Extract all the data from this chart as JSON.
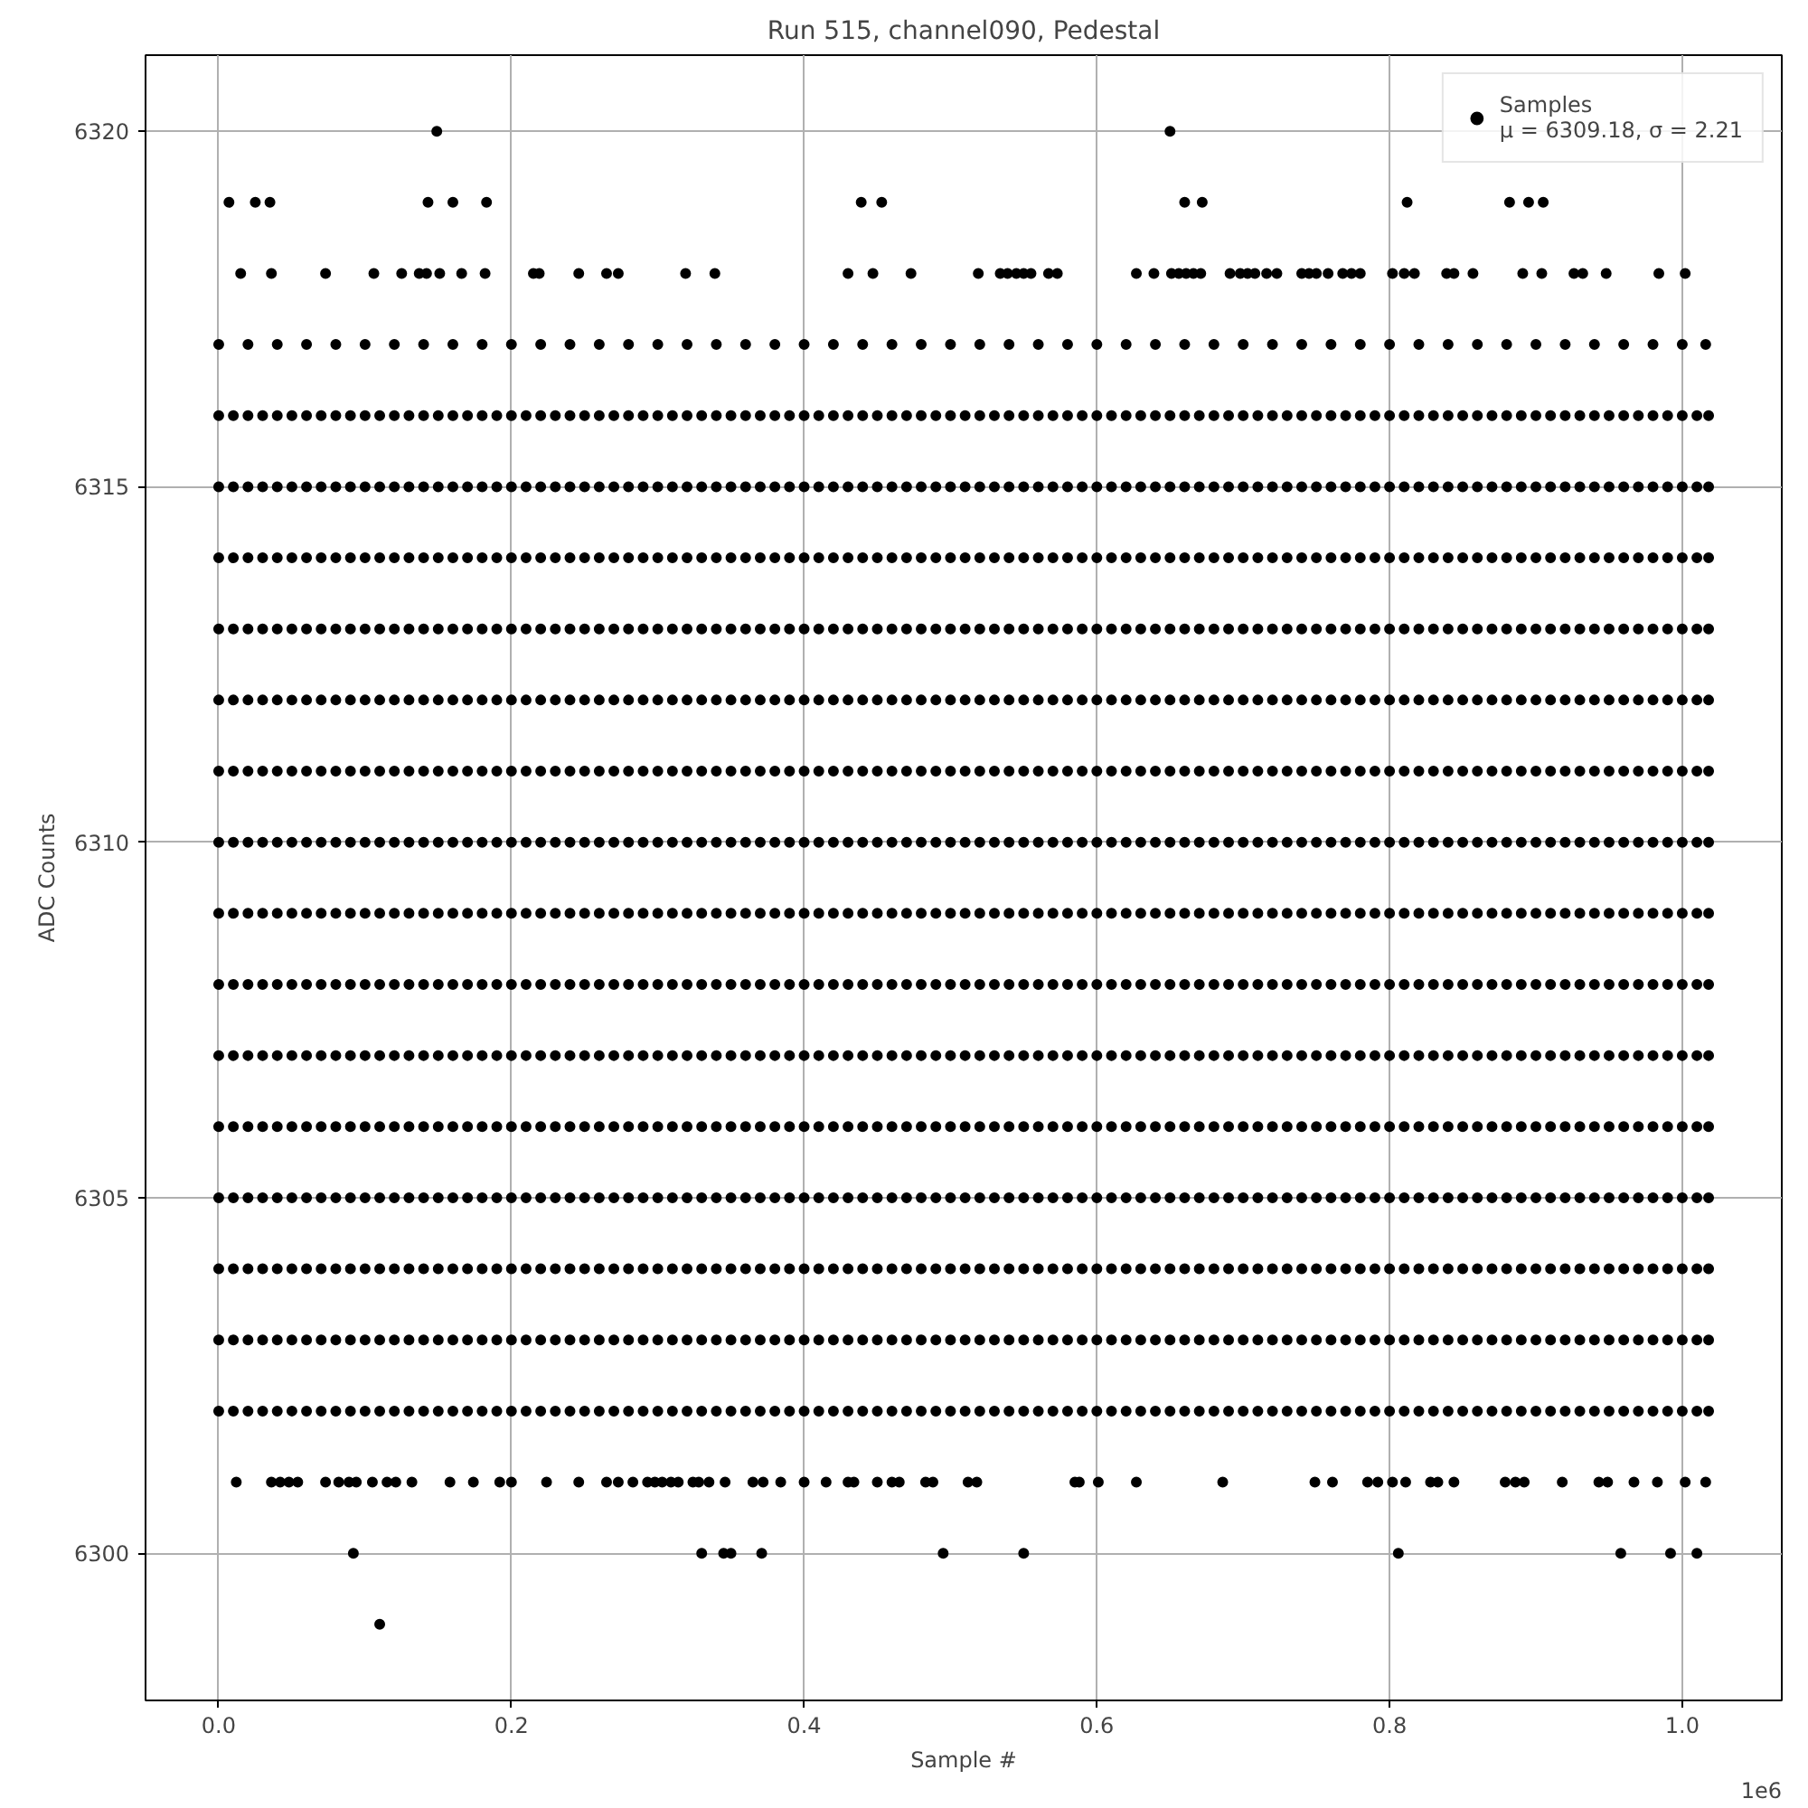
{
  "chart_data": {
    "type": "scatter",
    "title": "Run 515, channel090, Pedestal",
    "xlabel": "Sample #",
    "ylabel": "ADC Counts",
    "annotations": [
      "1e6"
    ],
    "xlim": [
      -0.05,
      1.068
    ],
    "ylim": [
      6297.93,
      6321.07
    ],
    "xticks": [
      {
        "value": 0,
        "label": "0.0"
      },
      {
        "value": 0.2,
        "label": "0.2"
      },
      {
        "value": 0.4,
        "label": "0.4"
      },
      {
        "value": 0.6,
        "label": "0.6"
      },
      {
        "value": 0.8,
        "label": "0.8"
      },
      {
        "value": 1.0,
        "label": "1.0"
      }
    ],
    "yticks": [
      6300,
      6305,
      6310,
      6315,
      6320
    ],
    "grid": true,
    "legend": "top right",
    "marker": "circle",
    "x": [
      0,
      0.01,
      0.02,
      0.03,
      0.04,
      0.05,
      0.06,
      0.07,
      0.08,
      0.09,
      0.1,
      0.11,
      0.12,
      0.13,
      0.14,
      0.15,
      0.16,
      0.17,
      0.18,
      0.19,
      0.2,
      0.21,
      0.22,
      0.23,
      0.24,
      0.25,
      0.26,
      0.27,
      0.28,
      0.29,
      0.3,
      0.31,
      0.32,
      0.33,
      0.34,
      0.35,
      0.36,
      0.37,
      0.38,
      0.39,
      0.4,
      0.41,
      0.42,
      0.43,
      0.44,
      0.45,
      0.46,
      0.47,
      0.48,
      0.49,
      0.5,
      0.51,
      0.52,
      0.53,
      0.54,
      0.55,
      0.56,
      0.57,
      0.58,
      0.59,
      0.6,
      0.61,
      0.62,
      0.63,
      0.64,
      0.65,
      0.66,
      0.67,
      0.68,
      0.69,
      0.7,
      0.71,
      0.72,
      0.73,
      0.74,
      0.75,
      0.76,
      0.77,
      0.78,
      0.79,
      0.8,
      0.81,
      0.82,
      0.83,
      0.84,
      0.85,
      0.86,
      0.87,
      0.88,
      0.89,
      0.9,
      0.91,
      0.92,
      0.93,
      0.94,
      0.95,
      0.96,
      0.97,
      0.98,
      0.99,
      1.0,
      1.01,
      1.018
    ],
    "series": [
      {
        "name": "Samples\nμ = 6309.18, σ = 2.21",
        "color": "#000000",
        "values": [
          6310,
          6310,
          6310,
          6310,
          6310,
          6310,
          6310,
          6310,
          6310,
          6310,
          6310,
          6310,
          6310,
          6310,
          6310,
          6310,
          6310,
          6310,
          6310,
          6310,
          6310,
          6310,
          6310,
          6310,
          6310,
          6310,
          6310,
          6310,
          6310,
          6310,
          6310,
          6310,
          6310,
          6310,
          6310,
          6310,
          6310,
          6310,
          6310,
          6310,
          6310,
          6310,
          6310,
          6310,
          6310,
          6310,
          6310,
          6310,
          6310,
          6310,
          6310,
          6310,
          6310,
          6310,
          6310,
          6310,
          6310,
          6310,
          6310,
          6310,
          6310,
          6310,
          6310,
          6310,
          6310,
          6310,
          6310,
          6310,
          6310,
          6310,
          6310,
          6310,
          6310,
          6310,
          6310,
          6310,
          6310,
          6310,
          6310,
          6310,
          6310,
          6310,
          6310,
          6310,
          6310,
          6310,
          6310,
          6310,
          6310,
          6310,
          6310,
          6310,
          6310,
          6310,
          6310,
          6310,
          6310,
          6310,
          6310,
          6310,
          6310,
          6310,
          6310
        ]
      },
      {
        "color": "#000000",
        "values": [
          6302,
          6302,
          6302,
          6302,
          6302,
          6302,
          6302,
          6302,
          6302,
          6302,
          6302,
          6302,
          6302,
          6302,
          6302,
          6302,
          6302,
          6302,
          6302,
          6302,
          6302,
          6302,
          6302,
          6302,
          6302,
          6302,
          6302,
          6302,
          6302,
          6302,
          6302,
          6302,
          6302,
          6302,
          6302,
          6302,
          6302,
          6302,
          6302,
          6302,
          6302,
          6302,
          6302,
          6302,
          6302,
          6302,
          6302,
          6302,
          6302,
          6302,
          6302,
          6302,
          6302,
          6302,
          6302,
          6302,
          6302,
          6302,
          6302,
          6302,
          6302,
          6302,
          6302,
          6302,
          6302,
          6302,
          6302,
          6302,
          6302,
          6302,
          6302,
          6302,
          6302,
          6302,
          6302,
          6302,
          6302,
          6302,
          6302,
          6302,
          6302,
          6302,
          6302,
          6302,
          6302,
          6302,
          6302,
          6302,
          6302,
          6302,
          6302,
          6302,
          6302,
          6302,
          6302,
          6302,
          6302,
          6302,
          6302,
          6302,
          6302,
          6302,
          6302
        ]
      },
      {
        "color": "#000000",
        "values": [
          6303,
          6303,
          6303,
          6303,
          6303,
          6303,
          6303,
          6303,
          6303,
          6303,
          6303,
          6303,
          6303,
          6303,
          6303,
          6303,
          6303,
          6303,
          6303,
          6303,
          6303,
          6303,
          6303,
          6303,
          6303,
          6303,
          6303,
          6303,
          6303,
          6303,
          6303,
          6303,
          6303,
          6303,
          6303,
          6303,
          6303,
          6303,
          6303,
          6303,
          6303,
          6303,
          6303,
          6303,
          6303,
          6303,
          6303,
          6303,
          6303,
          6303,
          6303,
          6303,
          6303,
          6303,
          6303,
          6303,
          6303,
          6303,
          6303,
          6303,
          6303,
          6303,
          6303,
          6303,
          6303,
          6303,
          6303,
          6303,
          6303,
          6303,
          6303,
          6303,
          6303,
          6303,
          6303,
          6303,
          6303,
          6303,
          6303,
          6303,
          6303,
          6303,
          6303,
          6303,
          6303,
          6303,
          6303,
          6303,
          6303,
          6303,
          6303,
          6303,
          6303,
          6303,
          6303,
          6303,
          6303,
          6303,
          6303,
          6303,
          6303,
          6303,
          6303
        ]
      },
      {
        "color": "#000000",
        "values": [
          6304,
          6304,
          6304,
          6304,
          6304,
          6304,
          6304,
          6304,
          6304,
          6304,
          6304,
          6304,
          6304,
          6304,
          6304,
          6304,
          6304,
          6304,
          6304,
          6304,
          6304,
          6304,
          6304,
          6304,
          6304,
          6304,
          6304,
          6304,
          6304,
          6304,
          6304,
          6304,
          6304,
          6304,
          6304,
          6304,
          6304,
          6304,
          6304,
          6304,
          6304,
          6304,
          6304,
          6304,
          6304,
          6304,
          6304,
          6304,
          6304,
          6304,
          6304,
          6304,
          6304,
          6304,
          6304,
          6304,
          6304,
          6304,
          6304,
          6304,
          6304,
          6304,
          6304,
          6304,
          6304,
          6304,
          6304,
          6304,
          6304,
          6304,
          6304,
          6304,
          6304,
          6304,
          6304,
          6304,
          6304,
          6304,
          6304,
          6304,
          6304,
          6304,
          6304,
          6304,
          6304,
          6304,
          6304,
          6304,
          6304,
          6304,
          6304,
          6304,
          6304,
          6304,
          6304,
          6304,
          6304,
          6304,
          6304,
          6304,
          6304,
          6304,
          6304
        ]
      },
      {
        "color": "#000000",
        "values": [
          6305,
          6305,
          6305,
          6305,
          6305,
          6305,
          6305,
          6305,
          6305,
          6305,
          6305,
          6305,
          6305,
          6305,
          6305,
          6305,
          6305,
          6305,
          6305,
          6305,
          6305,
          6305,
          6305,
          6305,
          6305,
          6305,
          6305,
          6305,
          6305,
          6305,
          6305,
          6305,
          6305,
          6305,
          6305,
          6305,
          6305,
          6305,
          6305,
          6305,
          6305,
          6305,
          6305,
          6305,
          6305,
          6305,
          6305,
          6305,
          6305,
          6305,
          6305,
          6305,
          6305,
          6305,
          6305,
          6305,
          6305,
          6305,
          6305,
          6305,
          6305,
          6305,
          6305,
          6305,
          6305,
          6305,
          6305,
          6305,
          6305,
          6305,
          6305,
          6305,
          6305,
          6305,
          6305,
          6305,
          6305,
          6305,
          6305,
          6305,
          6305,
          6305,
          6305,
          6305,
          6305,
          6305,
          6305,
          6305,
          6305,
          6305,
          6305,
          6305,
          6305,
          6305,
          6305,
          6305,
          6305,
          6305,
          6305,
          6305,
          6305,
          6305,
          6305
        ]
      },
      {
        "color": "#000000",
        "values": [
          6306,
          6306,
          6306,
          6306,
          6306,
          6306,
          6306,
          6306,
          6306,
          6306,
          6306,
          6306,
          6306,
          6306,
          6306,
          6306,
          6306,
          6306,
          6306,
          6306,
          6306,
          6306,
          6306,
          6306,
          6306,
          6306,
          6306,
          6306,
          6306,
          6306,
          6306,
          6306,
          6306,
          6306,
          6306,
          6306,
          6306,
          6306,
          6306,
          6306,
          6306,
          6306,
          6306,
          6306,
          6306,
          6306,
          6306,
          6306,
          6306,
          6306,
          6306,
          6306,
          6306,
          6306,
          6306,
          6306,
          6306,
          6306,
          6306,
          6306,
          6306,
          6306,
          6306,
          6306,
          6306,
          6306,
          6306,
          6306,
          6306,
          6306,
          6306,
          6306,
          6306,
          6306,
          6306,
          6306,
          6306,
          6306,
          6306,
          6306,
          6306,
          6306,
          6306,
          6306,
          6306,
          6306,
          6306,
          6306,
          6306,
          6306,
          6306,
          6306,
          6306,
          6306,
          6306,
          6306,
          6306,
          6306,
          6306,
          6306,
          6306,
          6306,
          6306
        ]
      },
      {
        "color": "#000000",
        "values": [
          6307,
          6307,
          6307,
          6307,
          6307,
          6307,
          6307,
          6307,
          6307,
          6307,
          6307,
          6307,
          6307,
          6307,
          6307,
          6307,
          6307,
          6307,
          6307,
          6307,
          6307,
          6307,
          6307,
          6307,
          6307,
          6307,
          6307,
          6307,
          6307,
          6307,
          6307,
          6307,
          6307,
          6307,
          6307,
          6307,
          6307,
          6307,
          6307,
          6307,
          6307,
          6307,
          6307,
          6307,
          6307,
          6307,
          6307,
          6307,
          6307,
          6307,
          6307,
          6307,
          6307,
          6307,
          6307,
          6307,
          6307,
          6307,
          6307,
          6307,
          6307,
          6307,
          6307,
          6307,
          6307,
          6307,
          6307,
          6307,
          6307,
          6307,
          6307,
          6307,
          6307,
          6307,
          6307,
          6307,
          6307,
          6307,
          6307,
          6307,
          6307,
          6307,
          6307,
          6307,
          6307,
          6307,
          6307,
          6307,
          6307,
          6307,
          6307,
          6307,
          6307,
          6307,
          6307,
          6307,
          6307,
          6307,
          6307,
          6307,
          6307,
          6307,
          6307
        ]
      },
      {
        "color": "#000000",
        "values": [
          6308,
          6308,
          6308,
          6308,
          6308,
          6308,
          6308,
          6308,
          6308,
          6308,
          6308,
          6308,
          6308,
          6308,
          6308,
          6308,
          6308,
          6308,
          6308,
          6308,
          6308,
          6308,
          6308,
          6308,
          6308,
          6308,
          6308,
          6308,
          6308,
          6308,
          6308,
          6308,
          6308,
          6308,
          6308,
          6308,
          6308,
          6308,
          6308,
          6308,
          6308,
          6308,
          6308,
          6308,
          6308,
          6308,
          6308,
          6308,
          6308,
          6308,
          6308,
          6308,
          6308,
          6308,
          6308,
          6308,
          6308,
          6308,
          6308,
          6308,
          6308,
          6308,
          6308,
          6308,
          6308,
          6308,
          6308,
          6308,
          6308,
          6308,
          6308,
          6308,
          6308,
          6308,
          6308,
          6308,
          6308,
          6308,
          6308,
          6308,
          6308,
          6308,
          6308,
          6308,
          6308,
          6308,
          6308,
          6308,
          6308,
          6308,
          6308,
          6308,
          6308,
          6308,
          6308,
          6308,
          6308,
          6308,
          6308,
          6308,
          6308,
          6308,
          6308
        ]
      },
      {
        "color": "#000000",
        "values": [
          6309,
          6309,
          6309,
          6309,
          6309,
          6309,
          6309,
          6309,
          6309,
          6309,
          6309,
          6309,
          6309,
          6309,
          6309,
          6309,
          6309,
          6309,
          6309,
          6309,
          6309,
          6309,
          6309,
          6309,
          6309,
          6309,
          6309,
          6309,
          6309,
          6309,
          6309,
          6309,
          6309,
          6309,
          6309,
          6309,
          6309,
          6309,
          6309,
          6309,
          6309,
          6309,
          6309,
          6309,
          6309,
          6309,
          6309,
          6309,
          6309,
          6309,
          6309,
          6309,
          6309,
          6309,
          6309,
          6309,
          6309,
          6309,
          6309,
          6309,
          6309,
          6309,
          6309,
          6309,
          6309,
          6309,
          6309,
          6309,
          6309,
          6309,
          6309,
          6309,
          6309,
          6309,
          6309,
          6309,
          6309,
          6309,
          6309,
          6309,
          6309,
          6309,
          6309,
          6309,
          6309,
          6309,
          6309,
          6309,
          6309,
          6309,
          6309,
          6309,
          6309,
          6309,
          6309,
          6309,
          6309,
          6309,
          6309,
          6309,
          6309,
          6309,
          6309
        ]
      },
      {
        "color": "#000000",
        "values": [
          6311,
          6311,
          6311,
          6311,
          6311,
          6311,
          6311,
          6311,
          6311,
          6311,
          6311,
          6311,
          6311,
          6311,
          6311,
          6311,
          6311,
          6311,
          6311,
          6311,
          6311,
          6311,
          6311,
          6311,
          6311,
          6311,
          6311,
          6311,
          6311,
          6311,
          6311,
          6311,
          6311,
          6311,
          6311,
          6311,
          6311,
          6311,
          6311,
          6311,
          6311,
          6311,
          6311,
          6311,
          6311,
          6311,
          6311,
          6311,
          6311,
          6311,
          6311,
          6311,
          6311,
          6311,
          6311,
          6311,
          6311,
          6311,
          6311,
          6311,
          6311,
          6311,
          6311,
          6311,
          6311,
          6311,
          6311,
          6311,
          6311,
          6311,
          6311,
          6311,
          6311,
          6311,
          6311,
          6311,
          6311,
          6311,
          6311,
          6311,
          6311,
          6311,
          6311,
          6311,
          6311,
          6311,
          6311,
          6311,
          6311,
          6311,
          6311,
          6311,
          6311,
          6311,
          6311,
          6311,
          6311,
          6311,
          6311,
          6311,
          6311,
          6311,
          6311
        ]
      },
      {
        "color": "#000000",
        "values": [
          6312,
          6312,
          6312,
          6312,
          6312,
          6312,
          6312,
          6312,
          6312,
          6312,
          6312,
          6312,
          6312,
          6312,
          6312,
          6312,
          6312,
          6312,
          6312,
          6312,
          6312,
          6312,
          6312,
          6312,
          6312,
          6312,
          6312,
          6312,
          6312,
          6312,
          6312,
          6312,
          6312,
          6312,
          6312,
          6312,
          6312,
          6312,
          6312,
          6312,
          6312,
          6312,
          6312,
          6312,
          6312,
          6312,
          6312,
          6312,
          6312,
          6312,
          6312,
          6312,
          6312,
          6312,
          6312,
          6312,
          6312,
          6312,
          6312,
          6312,
          6312,
          6312,
          6312,
          6312,
          6312,
          6312,
          6312,
          6312,
          6312,
          6312,
          6312,
          6312,
          6312,
          6312,
          6312,
          6312,
          6312,
          6312,
          6312,
          6312,
          6312,
          6312,
          6312,
          6312,
          6312,
          6312,
          6312,
          6312,
          6312,
          6312,
          6312,
          6312,
          6312,
          6312,
          6312,
          6312,
          6312,
          6312,
          6312,
          6312,
          6312,
          6312,
          6312
        ]
      },
      {
        "color": "#000000",
        "values": [
          6313,
          6313,
          6313,
          6313,
          6313,
          6313,
          6313,
          6313,
          6313,
          6313,
          6313,
          6313,
          6313,
          6313,
          6313,
          6313,
          6313,
          6313,
          6313,
          6313,
          6313,
          6313,
          6313,
          6313,
          6313,
          6313,
          6313,
          6313,
          6313,
          6313,
          6313,
          6313,
          6313,
          6313,
          6313,
          6313,
          6313,
          6313,
          6313,
          6313,
          6313,
          6313,
          6313,
          6313,
          6313,
          6313,
          6313,
          6313,
          6313,
          6313,
          6313,
          6313,
          6313,
          6313,
          6313,
          6313,
          6313,
          6313,
          6313,
          6313,
          6313,
          6313,
          6313,
          6313,
          6313,
          6313,
          6313,
          6313,
          6313,
          6313,
          6313,
          6313,
          6313,
          6313,
          6313,
          6313,
          6313,
          6313,
          6313,
          6313,
          6313,
          6313,
          6313,
          6313,
          6313,
          6313,
          6313,
          6313,
          6313,
          6313,
          6313,
          6313,
          6313,
          6313,
          6313,
          6313,
          6313,
          6313,
          6313,
          6313,
          6313,
          6313,
          6313
        ]
      },
      {
        "color": "#000000",
        "values": [
          6314,
          6314,
          6314,
          6314,
          6314,
          6314,
          6314,
          6314,
          6314,
          6314,
          6314,
          6314,
          6314,
          6314,
          6314,
          6314,
          6314,
          6314,
          6314,
          6314,
          6314,
          6314,
          6314,
          6314,
          6314,
          6314,
          6314,
          6314,
          6314,
          6314,
          6314,
          6314,
          6314,
          6314,
          6314,
          6314,
          6314,
          6314,
          6314,
          6314,
          6314,
          6314,
          6314,
          6314,
          6314,
          6314,
          6314,
          6314,
          6314,
          6314,
          6314,
          6314,
          6314,
          6314,
          6314,
          6314,
          6314,
          6314,
          6314,
          6314,
          6314,
          6314,
          6314,
          6314,
          6314,
          6314,
          6314,
          6314,
          6314,
          6314,
          6314,
          6314,
          6314,
          6314,
          6314,
          6314,
          6314,
          6314,
          6314,
          6314,
          6314,
          6314,
          6314,
          6314,
          6314,
          6314,
          6314,
          6314,
          6314,
          6314,
          6314,
          6314,
          6314,
          6314,
          6314,
          6314,
          6314,
          6314,
          6314,
          6314,
          6314,
          6314,
          6314
        ]
      },
      {
        "color": "#000000",
        "values": [
          6315,
          6315,
          6315,
          6315,
          6315,
          6315,
          6315,
          6315,
          6315,
          6315,
          6315,
          6315,
          6315,
          6315,
          6315,
          6315,
          6315,
          6315,
          6315,
          6315,
          6315,
          6315,
          6315,
          6315,
          6315,
          6315,
          6315,
          6315,
          6315,
          6315,
          6315,
          6315,
          6315,
          6315,
          6315,
          6315,
          6315,
          6315,
          6315,
          6315,
          6315,
          6315,
          6315,
          6315,
          6315,
          6315,
          6315,
          6315,
          6315,
          6315,
          6315,
          6315,
          6315,
          6315,
          6315,
          6315,
          6315,
          6315,
          6315,
          6315,
          6315,
          6315,
          6315,
          6315,
          6315,
          6315,
          6315,
          6315,
          6315,
          6315,
          6315,
          6315,
          6315,
          6315,
          6315,
          6315,
          6315,
          6315,
          6315,
          6315,
          6315,
          6315,
          6315,
          6315,
          6315,
          6315,
          6315,
          6315,
          6315,
          6315,
          6315,
          6315,
          6315,
          6315,
          6315,
          6315,
          6315,
          6315,
          6315,
          6315,
          6315,
          6315,
          6315
        ]
      },
      {
        "color": "#000000",
        "values": [
          6316,
          6316,
          6316,
          6316,
          6316,
          6316,
          6316,
          6316,
          6316,
          6316,
          6316,
          6316,
          6316,
          6316,
          6316,
          6316,
          6316,
          6316,
          6316,
          6316,
          6316,
          6316,
          6316,
          6316,
          6316,
          6316,
          6316,
          6316,
          6316,
          6316,
          6316,
          6316,
          6316,
          6316,
          6316,
          6316,
          6316,
          6316,
          6316,
          6316,
          6316,
          6316,
          6316,
          6316,
          6316,
          6316,
          6316,
          6316,
          6316,
          6316,
          6316,
          6316,
          6316,
          6316,
          6316,
          6316,
          6316,
          6316,
          6316,
          6316,
          6316,
          6316,
          6316,
          6316,
          6316,
          6316,
          6316,
          6316,
          6316,
          6316,
          6316,
          6316,
          6316,
          6316,
          6316,
          6316,
          6316,
          6316,
          6316,
          6316,
          6316,
          6316,
          6316,
          6316,
          6316,
          6316,
          6316,
          6316,
          6316,
          6316,
          6316,
          6316,
          6316,
          6316,
          6316,
          6316,
          6316,
          6316,
          6316,
          6316,
          6316,
          6316,
          6316
        ]
      },
      {
        "color": "#000000",
        "x": [
          0,
          0.02,
          0.04,
          0.06,
          0.08,
          0.1,
          0.12,
          0.14,
          0.16,
          0.18,
          0.2,
          0.22,
          0.24,
          0.26,
          0.28,
          0.3,
          0.32,
          0.34,
          0.36,
          0.38,
          0.4,
          0.42,
          0.44,
          0.46,
          0.48,
          0.5,
          0.52,
          0.54,
          0.56,
          0.58,
          0.6,
          0.62,
          0.64,
          0.66,
          0.68,
          0.7,
          0.72,
          0.74,
          0.76,
          0.78,
          0.8,
          0.82,
          0.84,
          0.86,
          0.88,
          0.9,
          0.92,
          0.94,
          0.96,
          0.98,
          1.0,
          1.016
        ],
        "values": [
          6317,
          6317,
          6317,
          6317,
          6317,
          6317,
          6317,
          6317,
          6317,
          6317,
          6317,
          6317,
          6317,
          6317,
          6317,
          6317,
          6317,
          6317,
          6317,
          6317,
          6317,
          6317,
          6317,
          6317,
          6317,
          6317,
          6317,
          6317,
          6317,
          6317,
          6317,
          6317,
          6317,
          6317,
          6317,
          6317,
          6317,
          6317,
          6317,
          6317,
          6317,
          6317,
          6317,
          6317,
          6317,
          6317,
          6317,
          6317,
          6317,
          6317,
          6317,
          6317
        ]
      },
      {
        "color": "#000000",
        "x": [
          0.015,
          0.036,
          0.073,
          0.106,
          0.125,
          0.137,
          0.142,
          0.151,
          0.166,
          0.182,
          0.215,
          0.219,
          0.246,
          0.265,
          0.273,
          0.319,
          0.339,
          0.43,
          0.447,
          0.473,
          0.519,
          0.534,
          0.539,
          0.545,
          0.55,
          0.555,
          0.567,
          0.573,
          0.627,
          0.639,
          0.651,
          0.656,
          0.661,
          0.666,
          0.671,
          0.691,
          0.698,
          0.703,
          0.708,
          0.716,
          0.723,
          0.74,
          0.745,
          0.75,
          0.758,
          0.768,
          0.774,
          0.78,
          0.802,
          0.81,
          0.817,
          0.839,
          0.844,
          0.857,
          0.891,
          0.904,
          0.926,
          0.932,
          0.948,
          0.984,
          1.002
        ],
        "values": [
          6318,
          6318,
          6318,
          6318,
          6318,
          6318,
          6318,
          6318,
          6318,
          6318,
          6318,
          6318,
          6318,
          6318,
          6318,
          6318,
          6318,
          6318,
          6318,
          6318,
          6318,
          6318,
          6318,
          6318,
          6318,
          6318,
          6318,
          6318,
          6318,
          6318,
          6318,
          6318,
          6318,
          6318,
          6318,
          6318,
          6318,
          6318,
          6318,
          6318,
          6318,
          6318,
          6318,
          6318,
          6318,
          6318,
          6318,
          6318,
          6318,
          6318,
          6318,
          6318,
          6318,
          6318,
          6318,
          6318,
          6318,
          6318,
          6318,
          6318,
          6318
        ]
      },
      {
        "color": "#000000",
        "x": [
          0.007,
          0.025,
          0.035,
          0.143,
          0.16,
          0.183,
          0.439,
          0.453,
          0.66,
          0.672,
          0.812,
          0.882,
          0.895,
          0.905
        ],
        "values": [
          6319,
          6319,
          6319,
          6319,
          6319,
          6319,
          6319,
          6319,
          6319,
          6319,
          6319,
          6319,
          6319,
          6319
        ]
      },
      {
        "color": "#000000",
        "x": [
          0.149,
          0.65
        ],
        "values": [
          6320,
          6320
        ]
      },
      {
        "color": "#000000",
        "x": [
          0.012,
          0.036,
          0.042,
          0.048,
          0.054,
          0.073,
          0.082,
          0.089,
          0.094,
          0.105,
          0.115,
          0.121,
          0.132,
          0.158,
          0.174,
          0.192,
          0.2,
          0.224,
          0.246,
          0.265,
          0.273,
          0.283,
          0.293,
          0.298,
          0.303,
          0.309,
          0.314,
          0.324,
          0.328,
          0.335,
          0.346,
          0.365,
          0.372,
          0.384,
          0.4,
          0.415,
          0.43,
          0.434,
          0.45,
          0.46,
          0.465,
          0.483,
          0.488,
          0.512,
          0.518,
          0.585,
          0.588,
          0.601,
          0.627,
          0.686,
          0.749,
          0.761,
          0.785,
          0.792,
          0.802,
          0.811,
          0.828,
          0.833,
          0.844,
          0.879,
          0.886,
          0.892,
          0.918,
          0.943,
          0.949,
          0.967,
          0.983,
          1.002,
          1.016
        ],
        "values": [
          6301,
          6301,
          6301,
          6301,
          6301,
          6301,
          6301,
          6301,
          6301,
          6301,
          6301,
          6301,
          6301,
          6301,
          6301,
          6301,
          6301,
          6301,
          6301,
          6301,
          6301,
          6301,
          6301,
          6301,
          6301,
          6301,
          6301,
          6301,
          6301,
          6301,
          6301,
          6301,
          6301,
          6301,
          6301,
          6301,
          6301,
          6301,
          6301,
          6301,
          6301,
          6301,
          6301,
          6301,
          6301,
          6301,
          6301,
          6301,
          6301,
          6301,
          6301,
          6301,
          6301,
          6301,
          6301,
          6301,
          6301,
          6301,
          6301,
          6301,
          6301,
          6301,
          6301,
          6301,
          6301,
          6301,
          6301,
          6301,
          6301
        ]
      },
      {
        "color": "#000000",
        "x": [
          0.092,
          0.33,
          0.345,
          0.35,
          0.371,
          0.495,
          0.55,
          0.806,
          0.958,
          0.992,
          1.01
        ],
        "values": [
          6300,
          6300,
          6300,
          6300,
          6300,
          6300,
          6300,
          6300,
          6300,
          6300,
          6300
        ]
      },
      {
        "color": "#000000",
        "x": [
          0.11
        ],
        "values": [
          6299
        ]
      }
    ]
  }
}
